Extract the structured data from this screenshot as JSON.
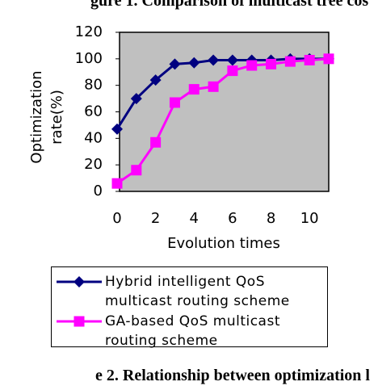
{
  "header_text": "gure 1. Comparison of multicast tree cos",
  "caption": "e 2. Relationship between optimization l",
  "chart_data": {
    "type": "line",
    "y_label_lines": [
      "Optimization",
      "rate(%)"
    ],
    "x_label": "Evolution times",
    "x": [
      0,
      1,
      2,
      3,
      4,
      5,
      6,
      7,
      8,
      9,
      10,
      11
    ],
    "series": [
      {
        "name": "Hybrid intelligent QoS multicast routing scheme",
        "color": "#000080",
        "marker": "diamond",
        "values": [
          47,
          70,
          84,
          96,
          97,
          99,
          99,
          99,
          99,
          100,
          100,
          100
        ]
      },
      {
        "name": "GA-based QoS multicast routing scheme",
        "color": "#ff00ff",
        "marker": "square",
        "values": [
          6,
          16,
          37,
          67,
          77,
          79,
          91,
          95,
          96,
          98,
          99,
          100
        ]
      }
    ],
    "xlim": [
      0,
      11
    ],
    "xticks": [
      0,
      2,
      4,
      6,
      8,
      10
    ],
    "ylim": [
      0,
      120
    ],
    "yticks": [
      0,
      20,
      40,
      60,
      80,
      100,
      120
    ],
    "grid": false,
    "plot_background": "#c0c0c0"
  }
}
